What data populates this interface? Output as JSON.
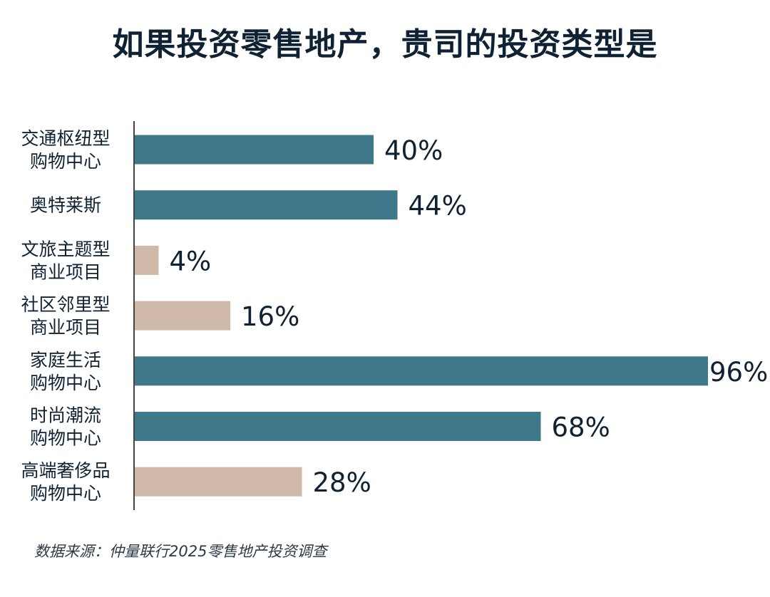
{
  "title": "如果投资零售地产，贵司的投资类型是",
  "source": "数据来源：仲量联行2025零售地产投资调查",
  "colors": {
    "highlight": "#3f788b",
    "muted": "#d0b9a8",
    "text": "#0f2233",
    "axis": "#444444"
  },
  "chart_data": {
    "type": "bar",
    "orientation": "horizontal",
    "categories": [
      [
        "交通枢纽型",
        "购物中心"
      ],
      [
        "奥特莱斯"
      ],
      [
        "文旅主题型",
        "商业项目"
      ],
      [
        "社区邻里型",
        "商业项目"
      ],
      [
        "家庭生活",
        "购物中心"
      ],
      [
        "时尚潮流",
        "购物中心"
      ],
      [
        "高端奢侈品",
        "购物中心"
      ]
    ],
    "values": [
      40,
      44,
      4,
      16,
      96,
      68,
      28
    ],
    "data_labels": [
      "40%",
      "44%",
      "4%",
      "16%",
      "96%",
      "68%",
      "28%"
    ],
    "bar_colors": [
      "highlight",
      "highlight",
      "muted",
      "muted",
      "highlight",
      "highlight",
      "muted"
    ],
    "xlim": [
      0,
      96
    ],
    "grid": false,
    "legend": false
  }
}
